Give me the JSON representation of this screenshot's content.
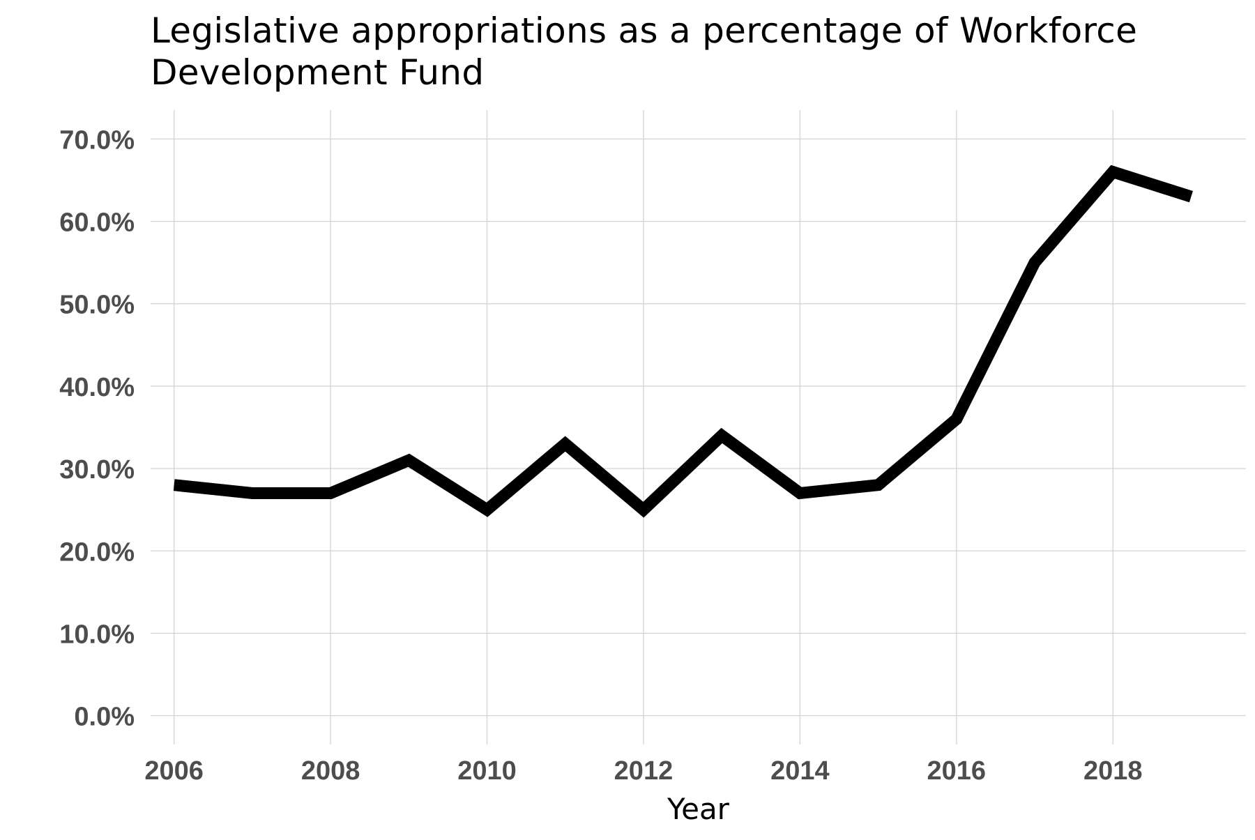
{
  "chart_data": {
    "type": "line",
    "title": "Legislative appropriations as a percentage of Workforce Development Fund",
    "xlabel": "Year",
    "ylabel": "",
    "x": [
      2006,
      2007,
      2008,
      2009,
      2010,
      2011,
      2012,
      2013,
      2014,
      2015,
      2016,
      2017,
      2018,
      2019
    ],
    "series": [
      {
        "values": [
          28.0,
          27.0,
          27.0,
          31.0,
          25.0,
          33.0,
          25.0,
          34.0,
          27.0,
          28.0,
          36.0,
          55.0,
          66.0,
          63.0
        ]
      }
    ],
    "xlim": [
      2005.7,
      2019.7
    ],
    "ylim": [
      -3.5,
      73.5
    ],
    "x_ticks": [
      2006,
      2008,
      2010,
      2012,
      2014,
      2016,
      2018
    ],
    "x_tick_labels": [
      "2006",
      "2008",
      "2010",
      "2012",
      "2014",
      "2016",
      "2018"
    ],
    "y_ticks": [
      0,
      10,
      20,
      30,
      40,
      50,
      60,
      70
    ],
    "y_tick_labels": [
      "0.0%",
      "10.0%",
      "20.0%",
      "30.0%",
      "40.0%",
      "50.0%",
      "60.0%",
      "70.0%"
    ],
    "grid": true,
    "line_color": "#000000",
    "grid_color": "#d3d3d3",
    "tick_label_color": "#4d4d4d"
  }
}
